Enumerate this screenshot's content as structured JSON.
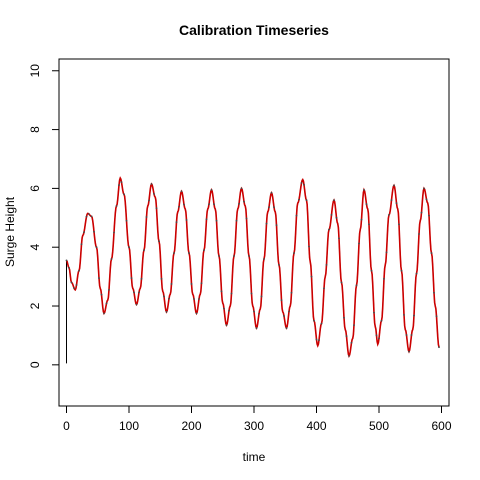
{
  "chart_data": {
    "type": "line",
    "title": "Calibration Timeseries",
    "xlabel": "time",
    "ylabel": "Surge Height",
    "xlim": [
      -12,
      612
    ],
    "ylim": [
      -1.4,
      10.4
    ],
    "x_ticks": [
      0,
      100,
      200,
      300,
      400,
      500,
      600
    ],
    "y_ticks": [
      0,
      2,
      4,
      6,
      8,
      10
    ],
    "grid": false,
    "legend": "none",
    "colors": {
      "observed": "#000000",
      "model": "#cc0000",
      "points": "#4a4a4a"
    },
    "series": [
      {
        "values": [
          [
            0,
            0.05
          ],
          [
            0,
            3.55
          ],
          [
            4,
            3.3
          ],
          [
            8,
            2.8
          ],
          [
            14,
            2.55
          ],
          [
            20,
            3.2
          ],
          [
            26,
            4.4
          ],
          [
            34,
            5.15
          ],
          [
            40,
            5.05
          ],
          [
            48,
            4.0
          ],
          [
            54,
            2.6
          ],
          [
            60,
            1.75
          ],
          [
            66,
            2.2
          ],
          [
            72,
            3.6
          ],
          [
            80,
            5.4
          ],
          [
            86,
            6.35
          ],
          [
            92,
            5.8
          ],
          [
            100,
            4.0
          ],
          [
            106,
            2.6
          ],
          [
            112,
            2.05
          ],
          [
            118,
            2.6
          ],
          [
            124,
            3.9
          ],
          [
            130,
            5.4
          ],
          [
            136,
            6.15
          ],
          [
            142,
            5.7
          ],
          [
            148,
            4.2
          ],
          [
            154,
            2.5
          ],
          [
            160,
            1.8
          ],
          [
            166,
            2.4
          ],
          [
            172,
            3.8
          ],
          [
            178,
            5.2
          ],
          [
            184,
            5.9
          ],
          [
            190,
            5.3
          ],
          [
            196,
            3.8
          ],
          [
            202,
            2.4
          ],
          [
            208,
            1.75
          ],
          [
            214,
            2.4
          ],
          [
            220,
            3.9
          ],
          [
            226,
            5.3
          ],
          [
            232,
            5.95
          ],
          [
            238,
            5.3
          ],
          [
            244,
            3.7
          ],
          [
            250,
            2.1
          ],
          [
            256,
            1.35
          ],
          [
            262,
            2.0
          ],
          [
            268,
            3.7
          ],
          [
            274,
            5.3
          ],
          [
            280,
            6.0
          ],
          [
            286,
            5.4
          ],
          [
            292,
            3.7
          ],
          [
            298,
            2.0
          ],
          [
            304,
            1.25
          ],
          [
            310,
            1.9
          ],
          [
            316,
            3.6
          ],
          [
            322,
            5.2
          ],
          [
            328,
            5.85
          ],
          [
            334,
            5.2
          ],
          [
            340,
            3.4
          ],
          [
            346,
            1.8
          ],
          [
            352,
            1.25
          ],
          [
            358,
            2.0
          ],
          [
            364,
            3.8
          ],
          [
            370,
            5.5
          ],
          [
            378,
            6.3
          ],
          [
            384,
            5.6
          ],
          [
            390,
            3.5
          ],
          [
            396,
            1.5
          ],
          [
            402,
            0.65
          ],
          [
            408,
            1.4
          ],
          [
            414,
            3.0
          ],
          [
            420,
            4.6
          ],
          [
            428,
            5.6
          ],
          [
            434,
            4.8
          ],
          [
            440,
            2.8
          ],
          [
            446,
            1.2
          ],
          [
            452,
            0.3
          ],
          [
            458,
            0.9
          ],
          [
            464,
            2.7
          ],
          [
            470,
            4.6
          ],
          [
            476,
            5.95
          ],
          [
            482,
            5.3
          ],
          [
            488,
            3.2
          ],
          [
            494,
            1.3
          ],
          [
            498,
            0.7
          ],
          [
            504,
            1.5
          ],
          [
            510,
            3.4
          ],
          [
            516,
            5.1
          ],
          [
            524,
            6.1
          ],
          [
            530,
            5.3
          ],
          [
            536,
            3.2
          ],
          [
            542,
            1.2
          ],
          [
            548,
            0.45
          ],
          [
            554,
            1.2
          ],
          [
            560,
            3.1
          ],
          [
            566,
            4.9
          ],
          [
            572,
            6.0
          ],
          [
            578,
            5.5
          ],
          [
            584,
            3.8
          ],
          [
            590,
            2.0
          ],
          [
            596,
            0.6
          ]
        ]
      }
    ]
  }
}
